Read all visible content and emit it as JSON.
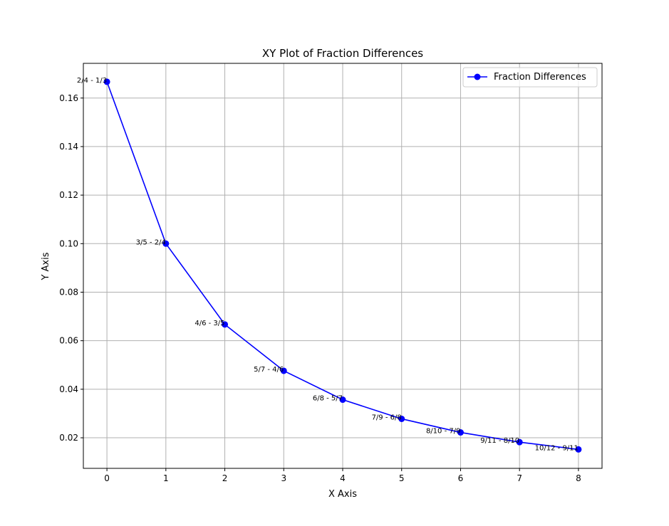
{
  "chart_data": {
    "type": "line",
    "title": "XY Plot of Fraction Differences",
    "xlabel": "X Axis",
    "ylabel": "Y Axis",
    "x": [
      0,
      1,
      2,
      3,
      4,
      5,
      6,
      7,
      8
    ],
    "series": [
      {
        "name": "Fraction Differences",
        "color": "#0000ff",
        "marker": "circle",
        "values": [
          0.1667,
          0.1,
          0.0667,
          0.0476,
          0.0357,
          0.0278,
          0.0222,
          0.0182,
          0.0152
        ]
      }
    ],
    "annotations": [
      "2/4 - 1/3",
      "3/5 - 2/4",
      "4/6 - 3/5",
      "5/7 - 4/6",
      "6/8 - 5/7",
      "7/9 - 6/8",
      "8/10 - 7/9",
      "9/11 - 8/10",
      "10/12 - 9/11"
    ],
    "xticks": [
      "0",
      "1",
      "2",
      "3",
      "4",
      "5",
      "6",
      "7",
      "8"
    ],
    "yticks": [
      "0.02",
      "0.04",
      "0.06",
      "0.08",
      "0.10",
      "0.12",
      "0.14",
      "0.16"
    ],
    "xlim": [
      -0.4,
      8.4
    ],
    "ylim": [
      0.0074,
      0.1743
    ],
    "grid": true,
    "legend_position": "upper right"
  }
}
